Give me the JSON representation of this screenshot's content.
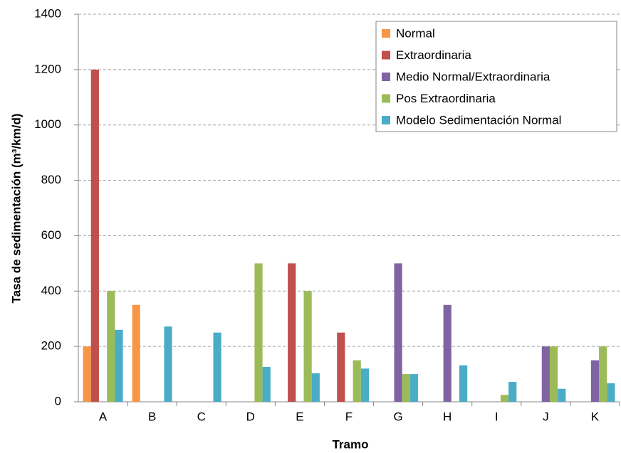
{
  "chart_data": {
    "type": "bar",
    "x_label": "Tramo",
    "y_label": "Tasa de sedimentación (m³/km/d)",
    "categories": [
      "A",
      "B",
      "C",
      "D",
      "E",
      "F",
      "G",
      "H",
      "I",
      "J",
      "K"
    ],
    "series": [
      {
        "name": "Normal",
        "color": "#f79646",
        "values": [
          200,
          350,
          null,
          null,
          null,
          null,
          null,
          null,
          null,
          null,
          null
        ]
      },
      {
        "name": "Extraordinaria",
        "color": "#c0504d",
        "values": [
          1200,
          null,
          null,
          null,
          500,
          250,
          null,
          null,
          null,
          null,
          null
        ]
      },
      {
        "name": "Medio Normal/Extraordinaria",
        "color": "#8064a2",
        "values": [
          null,
          null,
          null,
          null,
          null,
          null,
          500,
          350,
          null,
          200,
          150
        ]
      },
      {
        "name": "Pos Extraordinaria",
        "color": "#9bbb59",
        "values": [
          400,
          null,
          null,
          500,
          400,
          150,
          100,
          null,
          25,
          200,
          200
        ]
      },
      {
        "name": "Modelo Sedimentación Normal",
        "color": "#4bacc6",
        "values": [
          260,
          272,
          250,
          126,
          103,
          120,
          100,
          132,
          72,
          47,
          67
        ]
      }
    ],
    "ylim": [
      0,
      1400
    ],
    "yticks": [
      0,
      200,
      400,
      600,
      800,
      1000,
      1200,
      1400
    ],
    "grid": true,
    "legend": "top-right"
  }
}
